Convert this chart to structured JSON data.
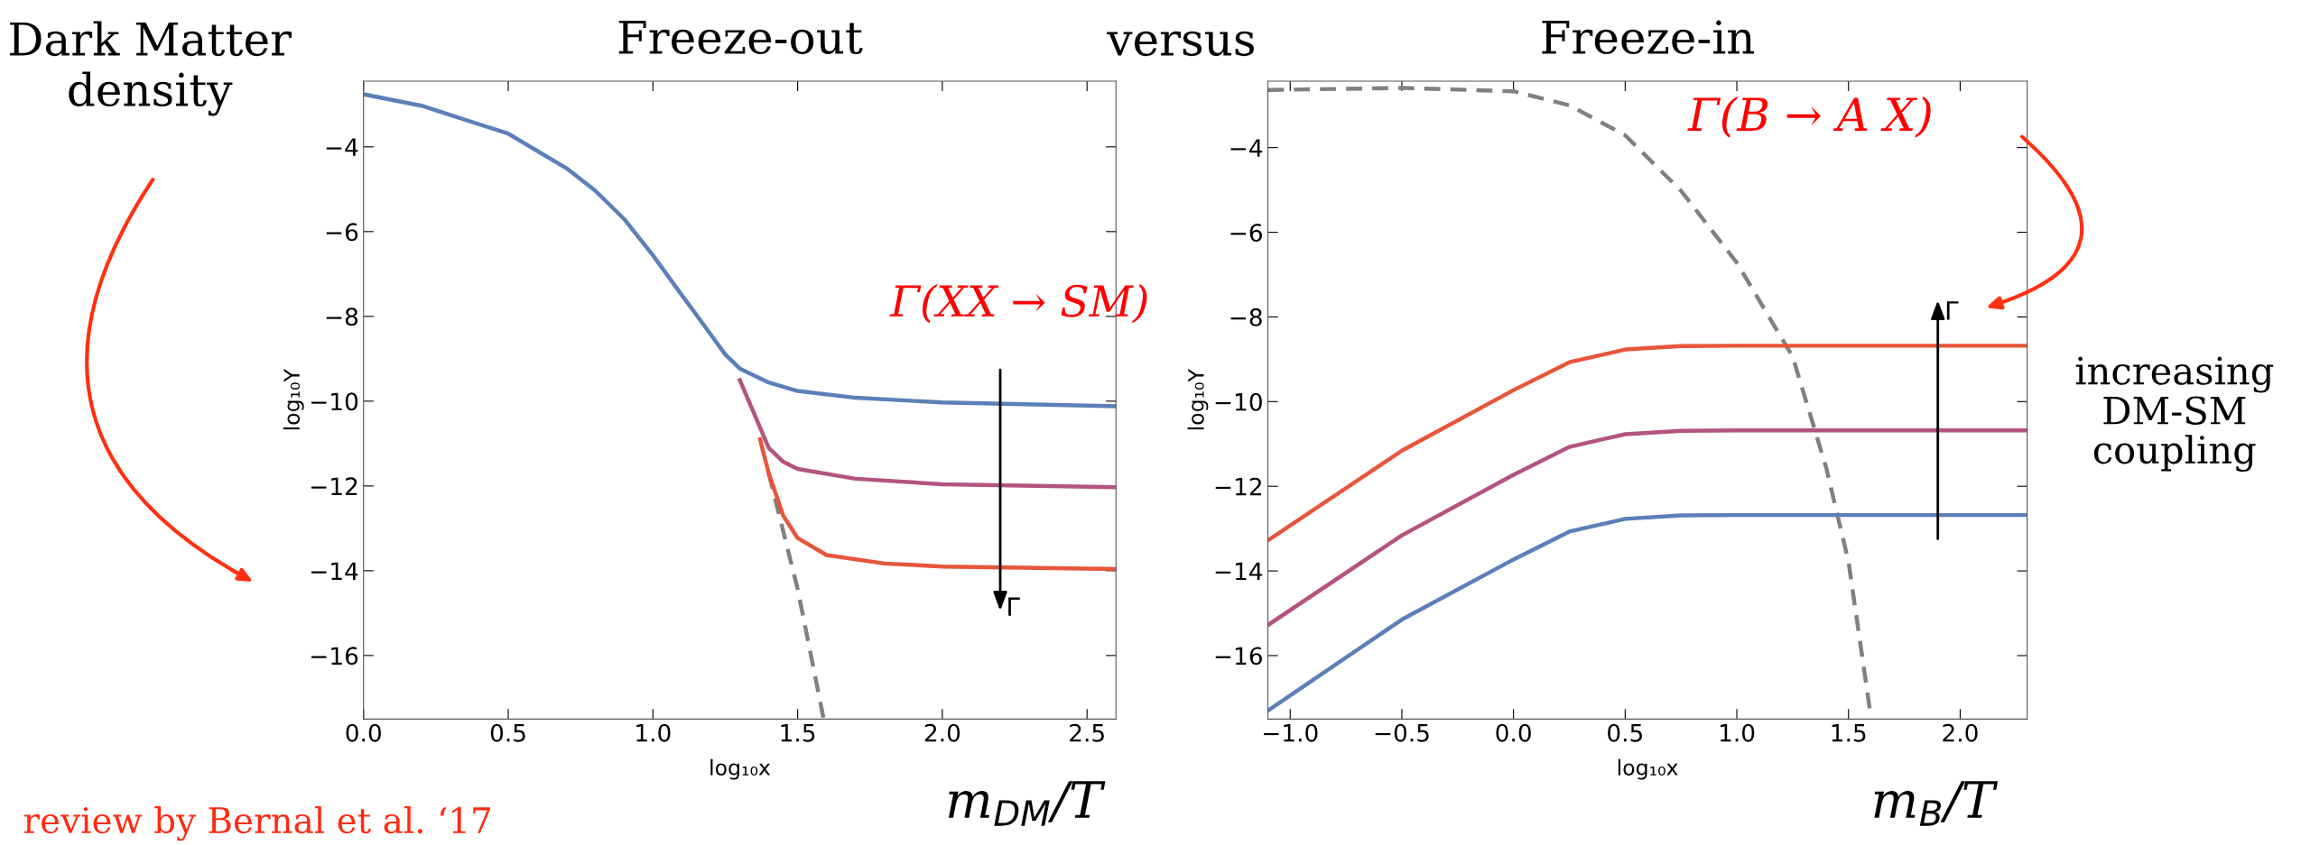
{
  "chart_data": [
    {
      "type": "line",
      "title": "Freeze-out",
      "xlabel": "log₁₀x",
      "ylabel": "log₁₀Y",
      "xlim": [
        0,
        2.6
      ],
      "ylim": [
        -17.5,
        -2.45
      ],
      "xticks": [
        {
          "value": 0,
          "label": "0.0"
        },
        {
          "value": 0.5,
          "label": "0.5"
        },
        {
          "value": 1,
          "label": "1.0"
        },
        {
          "value": 1.5,
          "label": "1.5"
        },
        {
          "value": 2,
          "label": "2.0"
        },
        {
          "value": 2.5,
          "label": "2.5"
        }
      ],
      "yticks": [
        {
          "value": -4,
          "label": "−4"
        },
        {
          "value": -6,
          "label": "−6"
        },
        {
          "value": -8,
          "label": "−8"
        },
        {
          "value": -10,
          "label": "−10"
        },
        {
          "value": -12,
          "label": "−12"
        },
        {
          "value": -14,
          "label": "−14"
        },
        {
          "value": -16,
          "label": "−16"
        }
      ],
      "grid": false,
      "marker": "none",
      "series": [
        {
          "color": "#808080",
          "line_style": "dashed",
          "x": [
            1.4,
            1.5,
            1.59
          ],
          "values": [
            -11.7,
            -14.43,
            -17.5
          ]
        },
        {
          "color": "#e8553a",
          "line_style": "solid",
          "x": [
            1.37,
            1.4,
            1.45,
            1.5,
            1.6,
            1.8,
            2.0,
            2.6
          ],
          "values": [
            -10.9,
            -11.7,
            -12.7,
            -13.23,
            -13.63,
            -13.83,
            -13.9,
            -13.96
          ]
        },
        {
          "color": "#b3547f",
          "line_style": "solid",
          "x": [
            1.3,
            1.35,
            1.4,
            1.45,
            1.5,
            1.7,
            2.0,
            2.6
          ],
          "values": [
            -9.5,
            -10.3,
            -11.1,
            -11.43,
            -11.6,
            -11.83,
            -11.96,
            -12.03
          ]
        },
        {
          "color": "#5b7fb8",
          "line_style": "solid",
          "x": [
            0,
            0.2,
            0.5,
            0.7,
            0.8,
            0.9,
            1.0,
            1.1,
            1.2,
            1.25,
            1.3,
            1.4,
            1.5,
            1.7,
            2.0,
            2.6
          ],
          "values": [
            -2.76,
            -3.03,
            -3.69,
            -4.5,
            -5.03,
            -5.7,
            -6.56,
            -7.5,
            -8.43,
            -8.9,
            -9.23,
            -9.56,
            -9.76,
            -9.92,
            -10.03,
            -10.12
          ]
        }
      ],
      "annotations": [
        "Γ(XX → SM)",
        "Γ",
        "Dark Matter\ndensity",
        "versus",
        "review by Bernal et al. ‘17",
        "m$_{DM}$/T"
      ]
    },
    {
      "type": "line",
      "title": "Freeze-in",
      "xlabel": "log₁₀x",
      "ylabel": "log₁₀Y",
      "xlim": [
        -1.1,
        2.3
      ],
      "ylim": [
        -17.5,
        -2.43
      ],
      "xticks": [
        {
          "value": -1,
          "label": "−1.0"
        },
        {
          "value": -0.5,
          "label": "−0.5"
        },
        {
          "value": 0,
          "label": "0.0"
        },
        {
          "value": 0.5,
          "label": "0.5"
        },
        {
          "value": 1,
          "label": "1.0"
        },
        {
          "value": 1.5,
          "label": "1.5"
        },
        {
          "value": 2,
          "label": "2.0"
        }
      ],
      "yticks": [
        {
          "value": -4,
          "label": "−4"
        },
        {
          "value": -6,
          "label": "−6"
        },
        {
          "value": -8,
          "label": "−8"
        },
        {
          "value": -10,
          "label": "−10"
        },
        {
          "value": -12,
          "label": "−12"
        },
        {
          "value": -14,
          "label": "−14"
        },
        {
          "value": -16,
          "label": "−16"
        }
      ],
      "grid": false,
      "marker": "none",
      "series": [
        {
          "color": "#808080",
          "line_style": "dashed",
          "x": [
            -1.1,
            -0.5,
            0,
            0.25,
            0.5,
            0.75,
            1.0,
            1.25,
            1.4,
            1.5,
            1.6
          ],
          "values": [
            -2.64,
            -2.59,
            -2.67,
            -3.0,
            -3.71,
            -5.02,
            -6.72,
            -8.94,
            -11.56,
            -13.78,
            -17.44
          ]
        },
        {
          "color": "#e8553a",
          "line_style": "solid",
          "x": [
            -1.1,
            -0.5,
            0,
            0.25,
            0.5,
            0.75,
            1.0,
            2.3
          ],
          "values": [
            -13.28,
            -11.16,
            -9.73,
            -9.07,
            -8.77,
            -8.69,
            -8.68,
            -8.68
          ]
        },
        {
          "color": "#b3547f",
          "line_style": "solid",
          "x": [
            -1.1,
            -0.5,
            0,
            0.25,
            0.5,
            0.75,
            1.0,
            2.3
          ],
          "values": [
            -15.28,
            -13.16,
            -11.73,
            -11.07,
            -10.77,
            -10.69,
            -10.68,
            -10.68
          ]
        },
        {
          "color": "#5b7fb8",
          "line_style": "solid",
          "x": [
            -1.1,
            -0.5,
            0,
            0.25,
            0.5,
            0.75,
            1.0,
            2.3
          ],
          "values": [
            -17.3,
            -15.15,
            -13.73,
            -13.07,
            -12.77,
            -12.69,
            -12.68,
            -12.68
          ]
        }
      ],
      "annotations": [
        "Γ(B → A X)",
        "Γ",
        "increasing\nDM-SM\ncoupling",
        "m$_{B}$/T"
      ]
    }
  ]
}
